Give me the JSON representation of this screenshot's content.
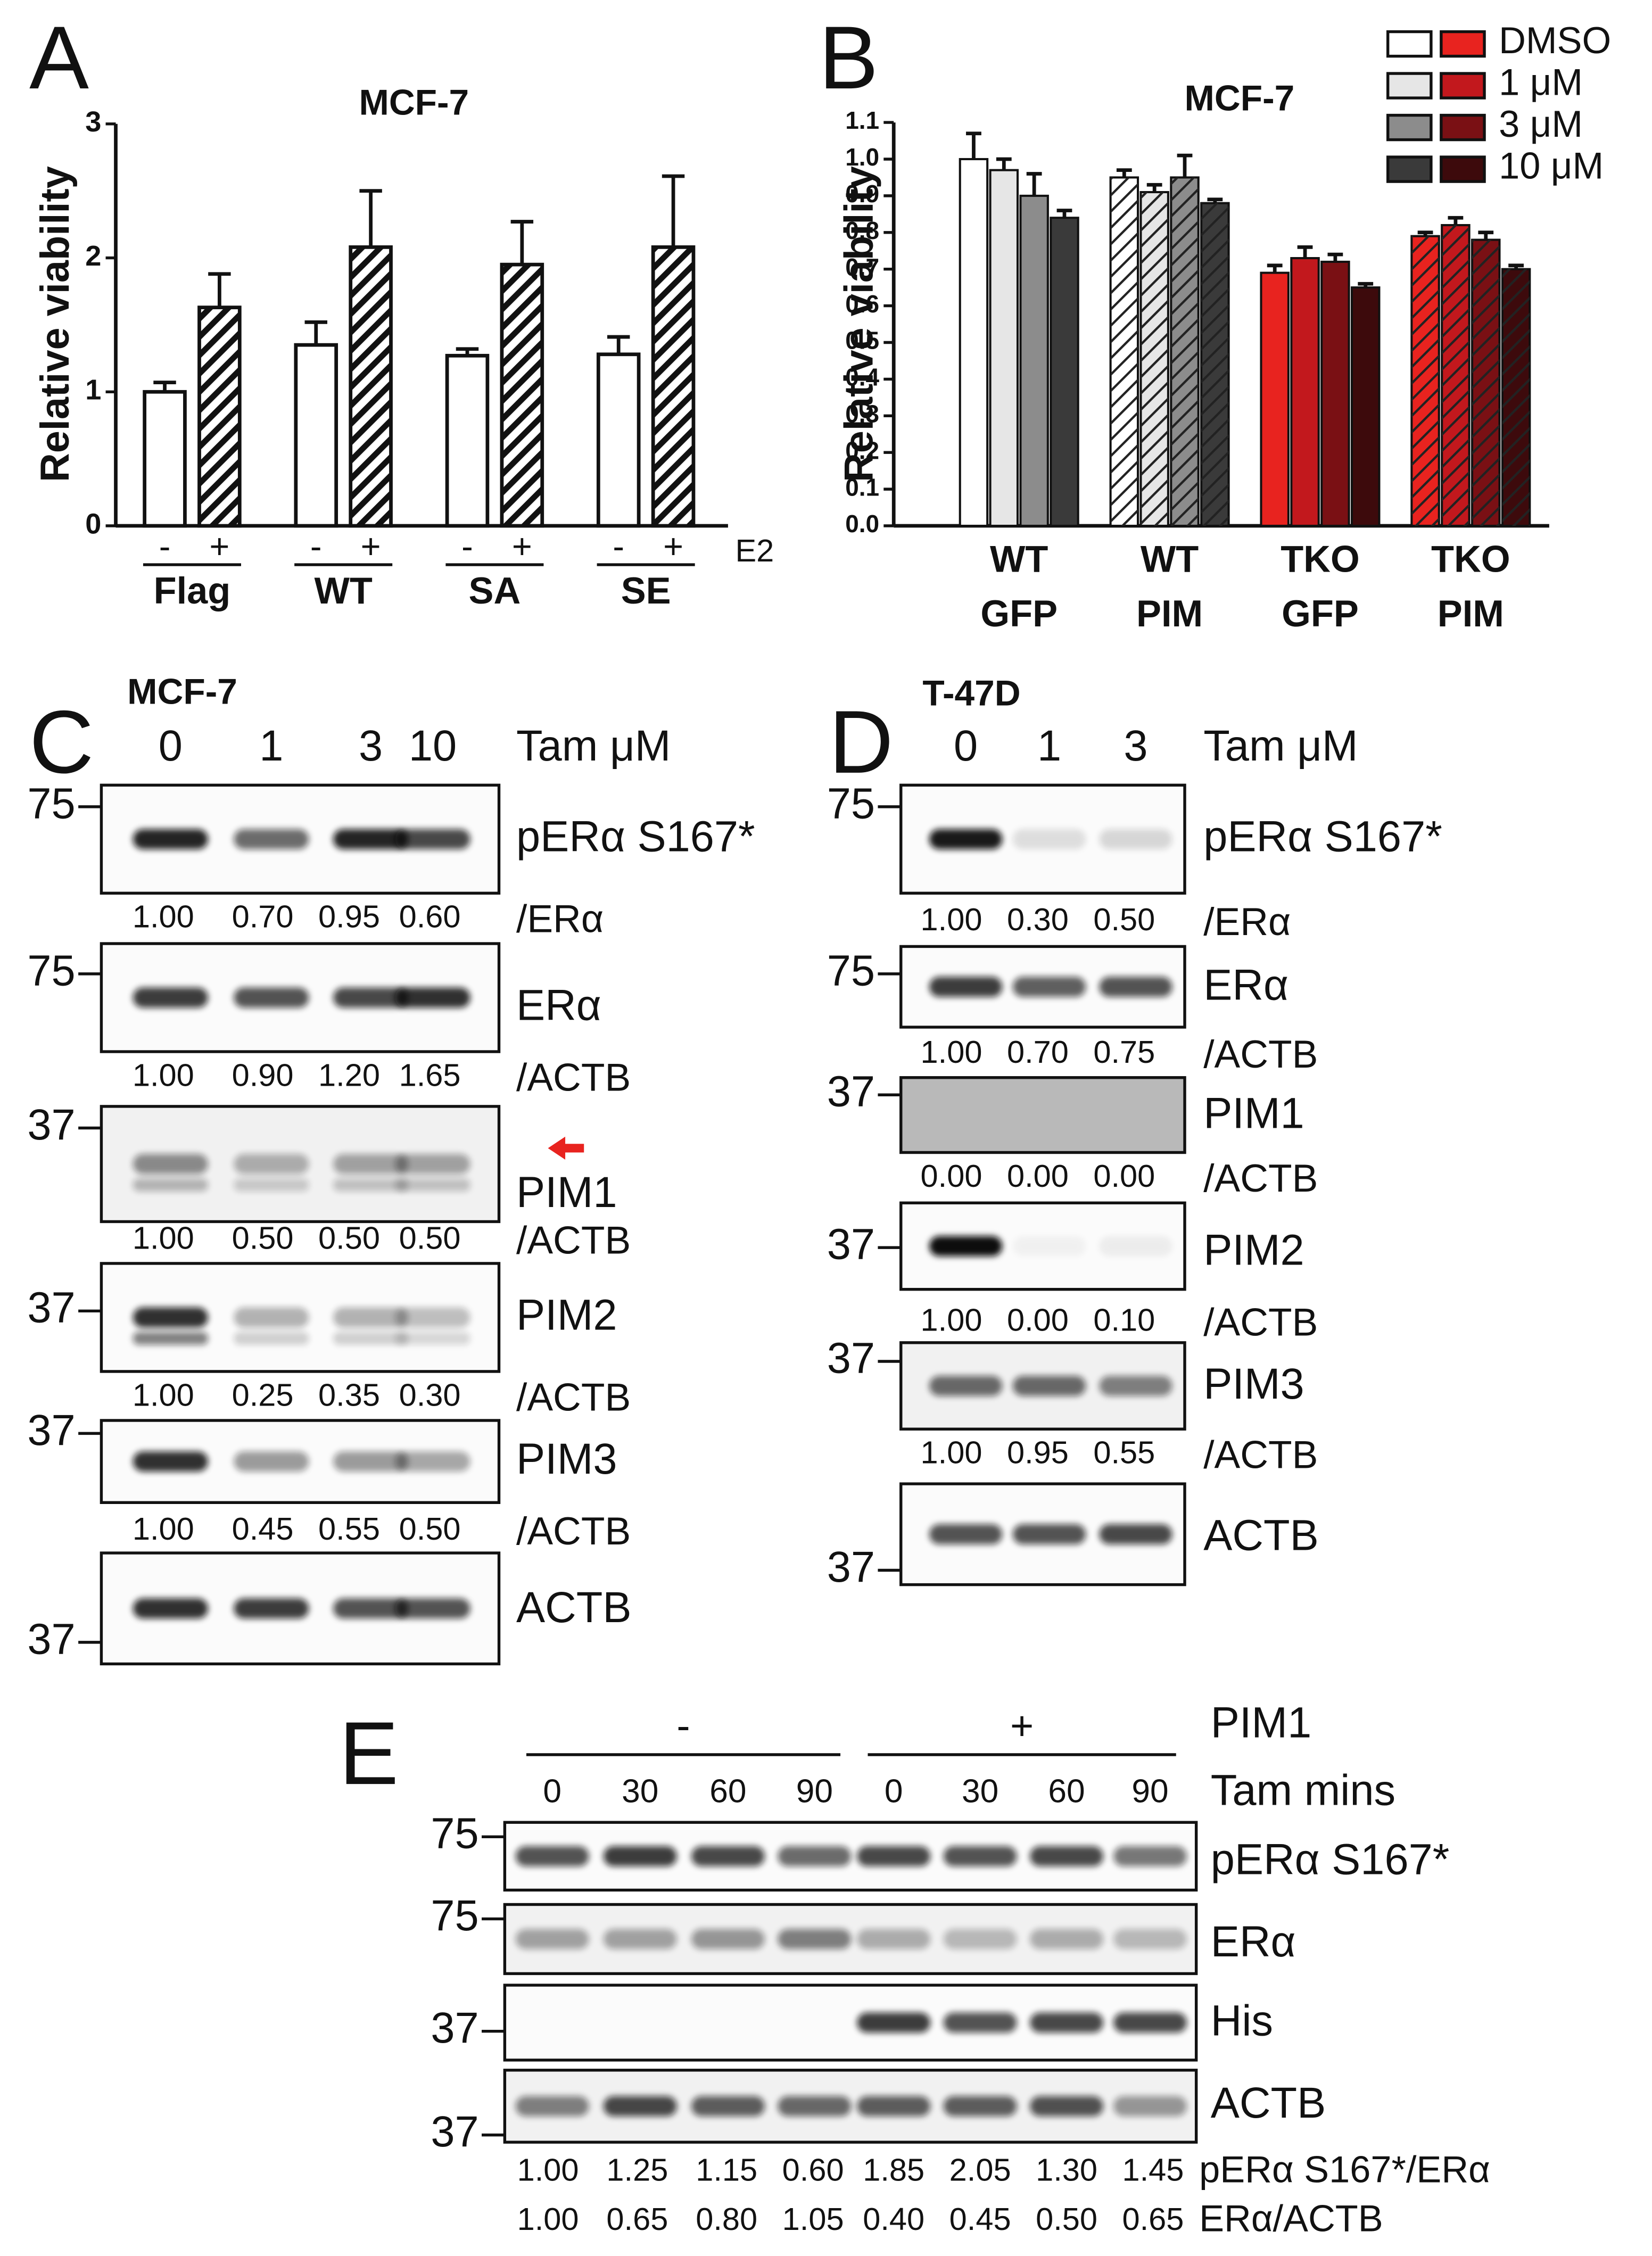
{
  "chart_data": [
    {
      "type": "bar",
      "panel": "A",
      "title": "MCF-7",
      "ylabel": "Relative viability",
      "x_label": "E2",
      "categories": [
        "Flag",
        "WT",
        "SA",
        "SE"
      ],
      "series": [
        {
          "name": "-",
          "color": "#ffffff",
          "hatched": false,
          "values": [
            1.0,
            1.35,
            1.27,
            1.28
          ],
          "errors": [
            0.07,
            0.17,
            0.05,
            0.13
          ]
        },
        {
          "name": "+",
          "color": "#ffffff",
          "hatched": true,
          "values": [
            1.63,
            2.08,
            1.95,
            2.08
          ],
          "errors": [
            0.25,
            0.42,
            0.32,
            0.53
          ]
        }
      ],
      "ylim": [
        0,
        3
      ],
      "yticks": [
        0,
        1,
        2,
        3
      ]
    },
    {
      "type": "bar",
      "panel": "B",
      "title": "MCF-7",
      "ylabel": "Relative viability",
      "categories": [
        [
          "WT",
          "GFP"
        ],
        [
          "WT",
          "PIM"
        ],
        [
          "TKO",
          "GFP"
        ],
        [
          "TKO",
          "PIM"
        ]
      ],
      "hatched": [
        false,
        true,
        false,
        true
      ],
      "series": [
        {
          "name": "DMSO",
          "colors": [
            "#ffffff",
            "#ffffff",
            "#e8231f",
            "#e8231f"
          ],
          "values": [
            1.0,
            0.95,
            0.69,
            0.79
          ],
          "errors": [
            0.07,
            0.02,
            0.02,
            0.01
          ]
        },
        {
          "name": "1 μM",
          "colors": [
            "#e6e6e6",
            "#e6e6e6",
            "#c2181d",
            "#c2181d"
          ],
          "values": [
            0.97,
            0.91,
            0.73,
            0.82
          ],
          "errors": [
            0.03,
            0.02,
            0.03,
            0.02
          ]
        },
        {
          "name": "3 μM",
          "colors": [
            "#8c8c8c",
            "#8c8c8c",
            "#7a1014",
            "#7a1014"
          ],
          "values": [
            0.9,
            0.95,
            0.72,
            0.78
          ],
          "errors": [
            0.06,
            0.06,
            0.02,
            0.02
          ]
        },
        {
          "name": "10 μM",
          "colors": [
            "#3a3a3a",
            "#3a3a3a",
            "#3d0a0c",
            "#3d0a0c"
          ],
          "values": [
            0.84,
            0.88,
            0.65,
            0.7
          ],
          "errors": [
            0.02,
            0.01,
            0.01,
            0.01
          ]
        }
      ],
      "legend": "top-right",
      "ylim": [
        0,
        1.1
      ],
      "yticks": [
        {
          "value": 0,
          "label": "0.0"
        },
        0.1,
        0.2,
        0.3,
        0.4,
        0.5,
        0.6,
        0.7,
        0.8,
        0.9,
        {
          "value": 1,
          "label": "1.0"
        },
        1.1
      ]
    }
  ],
  "blots": [
    {
      "panel": "C",
      "cell_line": "MCF-7",
      "lane_header": "Tam μM",
      "lanes": [
        "0",
        "1",
        "3",
        "10"
      ],
      "rows": [
        {
          "marker": "75",
          "protein": "pERα S167*",
          "quant_label": "/ERα",
          "quant": [
            "1.00",
            "0.70",
            "0.95",
            "0.60"
          ]
        },
        {
          "marker": "75",
          "protein": "ERα",
          "quant_label": "/ACTB",
          "quant": [
            "1.00",
            "0.90",
            "1.20",
            "1.65"
          ]
        },
        {
          "marker": "37",
          "protein": "PIM1",
          "quant_label": "/ACTB",
          "quant": [
            "1.00",
            "0.50",
            "0.50",
            "0.50"
          ]
        },
        {
          "marker": "37",
          "protein": "PIM2",
          "quant_label": "/ACTB",
          "quant": [
            "1.00",
            "0.25",
            "0.35",
            "0.30"
          ]
        },
        {
          "marker": "37",
          "protein": "PIM3",
          "quant_label": "/ACTB",
          "quant": [
            "1.00",
            "0.45",
            "0.55",
            "0.50"
          ]
        },
        {
          "marker": "37",
          "protein": "ACTB"
        }
      ]
    },
    {
      "panel": "D",
      "cell_line": "T-47D",
      "lane_header": "Tam μM",
      "lanes": [
        "0",
        "1",
        "3"
      ],
      "rows": [
        {
          "marker": "75",
          "protein": "pERα S167*",
          "quant_label": "/ERα",
          "quant": [
            "1.00",
            "0.30",
            "0.50"
          ]
        },
        {
          "marker": "75",
          "protein": "ERα",
          "quant_label": "/ACTB",
          "quant": [
            "1.00",
            "0.70",
            "0.75"
          ]
        },
        {
          "marker": "37",
          "protein": "PIM1",
          "quant_label": "/ACTB",
          "quant": [
            "0.00",
            "0.00",
            "0.00"
          ]
        },
        {
          "marker": "37",
          "protein": "PIM2",
          "quant_label": "/ACTB",
          "quant": [
            "1.00",
            "0.00",
            "0.10"
          ]
        },
        {
          "marker": "37",
          "protein": "PIM3",
          "quant_label": "/ACTB",
          "quant": [
            "1.00",
            "0.95",
            "0.55"
          ]
        },
        {
          "marker": "37",
          "protein": "ACTB"
        }
      ]
    },
    {
      "panel": "E",
      "group_label": "PIM1",
      "groups": [
        "-",
        "+"
      ],
      "lane_header": "Tam mins",
      "lanes": [
        "0",
        "30",
        "60",
        "90",
        "0",
        "30",
        "60",
        "90"
      ],
      "rows": [
        {
          "marker": "75",
          "protein": "pERα S167*"
        },
        {
          "marker": "75",
          "protein": "ERα"
        },
        {
          "marker": "37",
          "protein": "His"
        },
        {
          "marker": "37",
          "protein": "ACTB"
        }
      ],
      "quant_rows": [
        {
          "label": "pERα S167*/ERα",
          "values": [
            "1.00",
            "1.25",
            "1.15",
            "0.60",
            "1.85",
            "2.05",
            "1.30",
            "1.45"
          ]
        },
        {
          "label": "ERα/ACTB",
          "values": [
            "1.00",
            "0.65",
            "0.80",
            "1.05",
            "0.40",
            "0.45",
            "0.50",
            "0.65"
          ]
        }
      ]
    }
  ]
}
